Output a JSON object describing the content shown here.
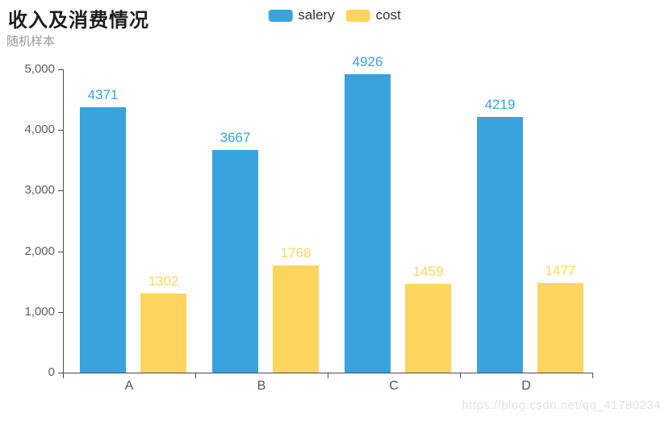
{
  "title": "收入及消费情况",
  "watermark": "https://blog.csdn.net/qq_41780234",
  "chart_data": {
    "type": "bar",
    "title": "收入及消费情况",
    "categories": [
      "A",
      "B",
      "C",
      "D"
    ],
    "series": [
      {
        "name": "salery",
        "color": "#3AA2DC",
        "values": [
          4371,
          3667,
          4926,
          4219
        ]
      },
      {
        "name": "cost",
        "color": "#FCD55E",
        "values": [
          1302,
          1768,
          1459,
          1477
        ]
      }
    ],
    "xlabel": "",
    "ylabel": "随机样本",
    "ylim": [
      0,
      5000
    ],
    "ytick_step": 1000,
    "ytick_labels": [
      "0",
      "1,000",
      "2,000",
      "3,000",
      "4,000",
      "5,000"
    ],
    "grid": false,
    "legend_position": "top-center",
    "value_labels": true
  }
}
